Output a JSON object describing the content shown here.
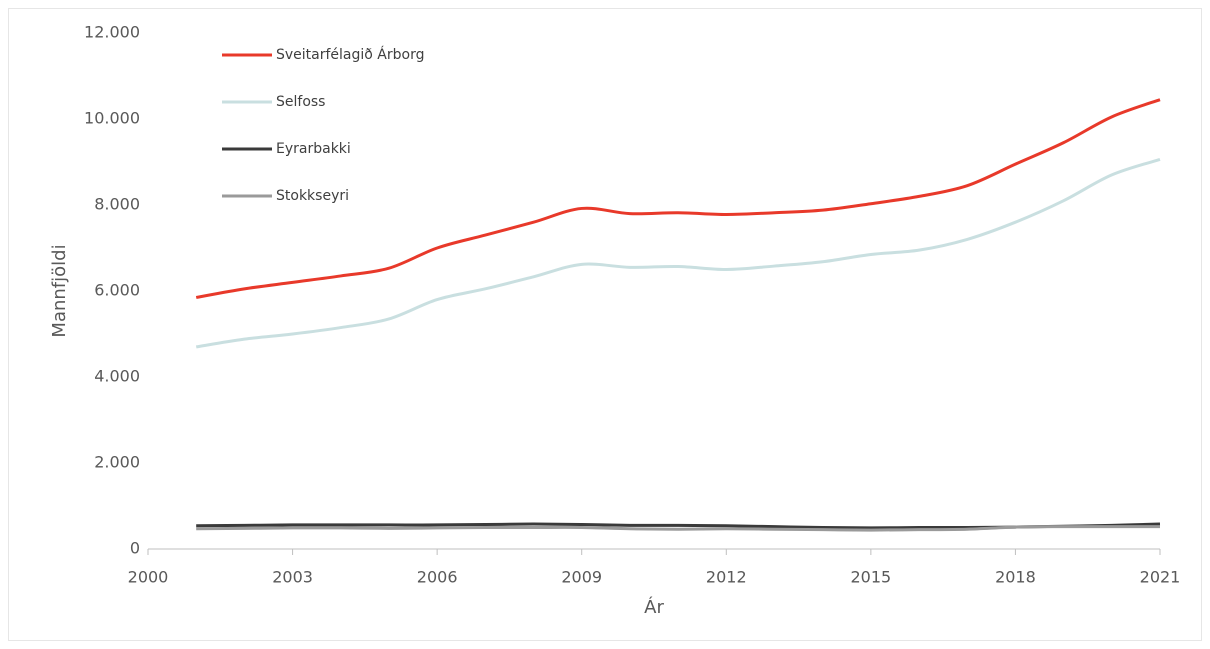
{
  "chart_data": {
    "type": "line",
    "x_label": "Ár",
    "y_label": "Mannfjöldi",
    "x": [
      2001,
      2002,
      2003,
      2004,
      2005,
      2006,
      2007,
      2008,
      2009,
      2010,
      2011,
      2012,
      2013,
      2014,
      2015,
      2016,
      2017,
      2018,
      2019,
      2020,
      2021
    ],
    "series": [
      {
        "name": "Sveitarfélagið Árborg",
        "color": "#e8392a",
        "values": [
          5850,
          6050,
          6200,
          6350,
          6530,
          7000,
          7300,
          7600,
          7920,
          7800,
          7820,
          7780,
          7820,
          7880,
          8030,
          8200,
          8450,
          8950,
          9450,
          10050,
          10450
        ]
      },
      {
        "name": "Selfoss",
        "color": "#c9dfe0",
        "values": [
          4700,
          4880,
          5000,
          5150,
          5350,
          5800,
          6050,
          6330,
          6620,
          6550,
          6570,
          6500,
          6580,
          6680,
          6850,
          6950,
          7200,
          7600,
          8100,
          8700,
          9060
        ]
      },
      {
        "name": "Eyrarbakki",
        "color": "#3a3a3a",
        "values": [
          540,
          550,
          560,
          560,
          560,
          560,
          570,
          580,
          570,
          550,
          550,
          540,
          520,
          500,
          490,
          500,
          500,
          510,
          530,
          550,
          580
        ]
      },
      {
        "name": "Stokkseyri",
        "color": "#9a9a9a",
        "values": [
          470,
          480,
          490,
          490,
          480,
          490,
          500,
          500,
          500,
          470,
          460,
          470,
          460,
          450,
          440,
          450,
          460,
          510,
          520,
          520,
          520
        ]
      }
    ],
    "xlim": [
      2000,
      2021
    ],
    "xticks": [
      2000,
      2003,
      2006,
      2009,
      2012,
      2015,
      2018,
      2021
    ],
    "ylim": [
      0,
      12000
    ],
    "yticks": [
      0,
      {
        "value": 2000,
        "label": "2.000"
      },
      {
        "value": 4000,
        "label": "4.000"
      },
      {
        "value": 6000,
        "label": "6.000"
      },
      {
        "value": 8000,
        "label": "8.000"
      },
      {
        "value": 10000,
        "label": "10.000"
      },
      {
        "value": 12000,
        "label": "12.000"
      }
    ],
    "legend": "top-left",
    "grid": false
  }
}
